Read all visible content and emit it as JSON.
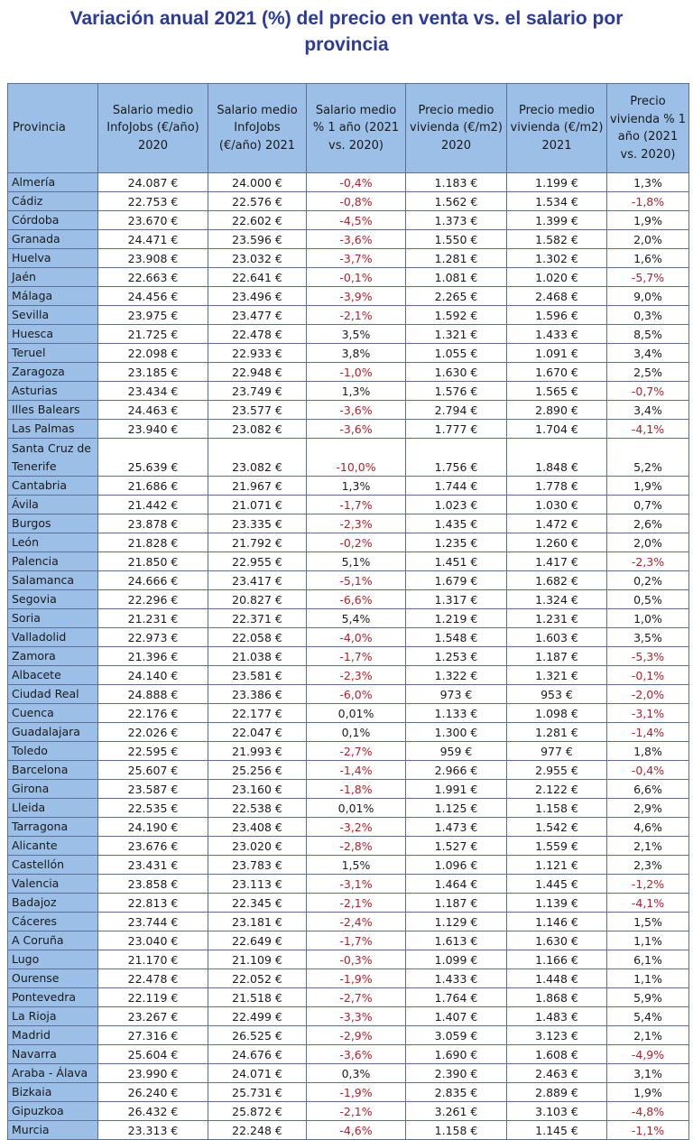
{
  "title_line1": "Variación anual 2021 (%) del precio en venta vs. el salario por",
  "title_line2": "provincia",
  "columns": [
    "Provincia",
    "Salario medio InfoJobs (€/año) 2020",
    "Salario medio InfoJobs (€/año) 2021",
    "Salario medio % 1 año (2021 vs. 2020)",
    "Precio medio vivienda (€/m2) 2020",
    "Precio medio vivienda (€/m2) 2021",
    "Precio vivienda % 1 año (2021 vs. 2020)"
  ],
  "rows": [
    [
      "Almería",
      "24.087 €",
      "24.000 €",
      "-0,4%",
      "1.183 €",
      "1.199 €",
      "1,3%"
    ],
    [
      "Cádiz",
      "22.753 €",
      "22.576 €",
      "-0,8%",
      "1.562 €",
      "1.534 €",
      "-1,8%"
    ],
    [
      "Córdoba",
      "23.670 €",
      "22.602 €",
      "-4,5%",
      "1.373 €",
      "1.399 €",
      "1,9%"
    ],
    [
      "Granada",
      "24.471 €",
      "23.596 €",
      "-3,6%",
      "1.550 €",
      "1.582 €",
      "2,0%"
    ],
    [
      "Huelva",
      "23.908 €",
      "23.032 €",
      "-3,7%",
      "1.281 €",
      "1.302 €",
      "1,6%"
    ],
    [
      "Jaén",
      "22.663 €",
      "22.641 €",
      "-0,1%",
      "1.081 €",
      "1.020 €",
      "-5,7%"
    ],
    [
      "Málaga",
      "24.456 €",
      "23.496 €",
      "-3,9%",
      "2.265 €",
      "2.468 €",
      "9,0%"
    ],
    [
      "Sevilla",
      "23.975 €",
      "23.477 €",
      "-2,1%",
      "1.592 €",
      "1.596 €",
      "0,3%"
    ],
    [
      "Huesca",
      "21.725 €",
      "22.478 €",
      "3,5%",
      "1.321 €",
      "1.433 €",
      "8,5%"
    ],
    [
      "Teruel",
      "22.098 €",
      "22.933 €",
      "3,8%",
      "1.055 €",
      "1.091 €",
      "3,4%"
    ],
    [
      "Zaragoza",
      "23.185 €",
      "22.948 €",
      "-1,0%",
      "1.630 €",
      "1.670 €",
      "2,5%"
    ],
    [
      "Asturias",
      "23.434 €",
      "23.749 €",
      "1,3%",
      "1.576 €",
      "1.565 €",
      "-0,7%"
    ],
    [
      "Illes Balears",
      "24.463 €",
      "23.577 €",
      "-3,6%",
      "2.794 €",
      "2.890 €",
      "3,4%"
    ],
    [
      "Las Palmas",
      "23.940 €",
      "23.082 €",
      "-3,6%",
      "1.777 €",
      "1.704 €",
      "-4,1%"
    ],
    [
      "Santa Cruz de Tenerife",
      "25.639 €",
      "23.082 €",
      "-10,0%",
      "1.756 €",
      "1.848 €",
      "5,2%"
    ],
    [
      "Cantabria",
      "21.686 €",
      "21.967 €",
      "1,3%",
      "1.744 €",
      "1.778 €",
      "1,9%"
    ],
    [
      "Ávila",
      "21.442 €",
      "21.071 €",
      "-1,7%",
      "1.023 €",
      "1.030 €",
      "0,7%"
    ],
    [
      "Burgos",
      "23.878 €",
      "23.335 €",
      "-2,3%",
      "1.435 €",
      "1.472 €",
      "2,6%"
    ],
    [
      "León",
      "21.828 €",
      "21.792 €",
      "-0,2%",
      "1.235 €",
      "1.260 €",
      "2,0%"
    ],
    [
      "Palencia",
      "21.850 €",
      "22.955 €",
      "5,1%",
      "1.451 €",
      "1.417 €",
      "-2,3%"
    ],
    [
      "Salamanca",
      "24.666 €",
      "23.417 €",
      "-5,1%",
      "1.679 €",
      "1.682 €",
      "0,2%"
    ],
    [
      "Segovia",
      "22.296 €",
      "20.827 €",
      "-6,6%",
      "1.317 €",
      "1.324 €",
      "0,5%"
    ],
    [
      "Soria",
      "21.231 €",
      "22.371 €",
      "5,4%",
      "1.219 €",
      "1.231 €",
      "1,0%"
    ],
    [
      "Valladolid",
      "22.973 €",
      "22.058 €",
      "-4,0%",
      "1.548 €",
      "1.603 €",
      "3,5%"
    ],
    [
      "Zamora",
      "21.396 €",
      "21.038 €",
      "-1,7%",
      "1.253 €",
      "1.187 €",
      "-5,3%"
    ],
    [
      "Albacete",
      "24.140 €",
      "23.581 €",
      "-2,3%",
      "1.322 €",
      "1.321 €",
      "-0,1%"
    ],
    [
      "Ciudad Real",
      "24.888 €",
      "23.386 €",
      "-6,0%",
      "973 €",
      "953 €",
      "-2,0%"
    ],
    [
      "Cuenca",
      "22.176 €",
      "22.177 €",
      "0,01%",
      "1.133 €",
      "1.098 €",
      "-3,1%"
    ],
    [
      "Guadalajara",
      "22.026 €",
      "22.047 €",
      "0,1%",
      "1.300 €",
      "1.281 €",
      "-1,4%"
    ],
    [
      "Toledo",
      "22.595 €",
      "21.993 €",
      "-2,7%",
      "959 €",
      "977 €",
      "1,8%"
    ],
    [
      "Barcelona",
      "25.607 €",
      "25.256 €",
      "-1,4%",
      "2.966 €",
      "2.955 €",
      "-0,4%"
    ],
    [
      "Girona",
      "23.587 €",
      "23.160 €",
      "-1,8%",
      "1.991 €",
      "2.122 €",
      "6,6%"
    ],
    [
      "Lleida",
      "22.535 €",
      "22.538 €",
      "0,01%",
      "1.125 €",
      "1.158 €",
      "2,9%"
    ],
    [
      "Tarragona",
      "24.190 €",
      "23.408 €",
      "-3,2%",
      "1.473 €",
      "1.542 €",
      "4,6%"
    ],
    [
      "Alicante",
      "23.676 €",
      "23.020 €",
      "-2,8%",
      "1.527 €",
      "1.559 €",
      "2,1%"
    ],
    [
      "Castellón",
      "23.431 €",
      "23.783 €",
      "1,5%",
      "1.096 €",
      "1.121 €",
      "2,3%"
    ],
    [
      "Valencia",
      "23.858 €",
      "23.113 €",
      "-3,1%",
      "1.464 €",
      "1.445 €",
      "-1,2%"
    ],
    [
      "Badajoz",
      "22.813 €",
      "22.345 €",
      "-2,1%",
      "1.187 €",
      "1.139 €",
      "-4,1%"
    ],
    [
      "Cáceres",
      "23.744 €",
      "23.181 €",
      "-2,4%",
      "1.129 €",
      "1.146 €",
      "1,5%"
    ],
    [
      "A Coruña",
      "23.040 €",
      "22.649 €",
      "-1,7%",
      "1.613 €",
      "1.630 €",
      "1,1%"
    ],
    [
      "Lugo",
      "21.170 €",
      "21.109 €",
      "-0,3%",
      "1.099 €",
      "1.166 €",
      "6,1%"
    ],
    [
      "Ourense",
      "22.478 €",
      "22.052 €",
      "-1,9%",
      "1.433 €",
      "1.448 €",
      "1,1%"
    ],
    [
      "Pontevedra",
      "22.119 €",
      "21.518 €",
      "-2,7%",
      "1.764 €",
      "1.868 €",
      "5,9%"
    ],
    [
      "La Rioja",
      "23.267 €",
      "22.499 €",
      "-3,3%",
      "1.407 €",
      "1.483 €",
      "5,4%"
    ],
    [
      "Madrid",
      "27.316 €",
      "26.525 €",
      "-2,9%",
      "3.059 €",
      "3.123 €",
      "2,1%"
    ],
    [
      "Navarra",
      "25.604 €",
      "24.676 €",
      "-3,6%",
      "1.690 €",
      "1.608 €",
      "-4,9%"
    ],
    [
      "Araba - Álava",
      "23.990 €",
      "24.071 €",
      "0,3%",
      "2.390 €",
      "2.463 €",
      "3,1%"
    ],
    [
      "Bizkaia",
      "26.240 €",
      "25.731 €",
      "-1,9%",
      "2.835 €",
      "2.889 €",
      "1,9%"
    ],
    [
      "Gipuzkoa",
      "26.432 €",
      "25.872 €",
      "-2,1%",
      "3.261 €",
      "3.103 €",
      "-4,8%"
    ],
    [
      "Murcia",
      "23.313 €",
      "22.248 €",
      "-4,6%",
      "1.158 €",
      "1.145 €",
      "-1,1%"
    ]
  ]
}
